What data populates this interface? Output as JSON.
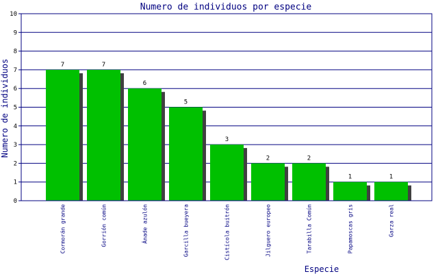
{
  "chart_data": {
    "type": "bar",
    "title": "Numero de individuos por especie",
    "xlabel": "Especie",
    "ylabel": "Numero de individuos",
    "ylim": [
      0,
      10
    ],
    "yticks": [
      0,
      1,
      2,
      3,
      4,
      5,
      6,
      7,
      8,
      9,
      10
    ],
    "grid": true,
    "categories": [
      "Cormorán grande",
      "Gorrión común",
      "Ánade azulón",
      "Garcilla bueyera",
      "Cistícola buitrón",
      "Jilguero europeo",
      "Tarabilla Común",
      "Papamoscas gris",
      "Garza real"
    ],
    "values": [
      7,
      7,
      6,
      5,
      3,
      2,
      2,
      1,
      1
    ],
    "colors": {
      "bar": "#00c000",
      "shadow": "#404040",
      "text": "#000080",
      "grid": "#000080"
    }
  }
}
